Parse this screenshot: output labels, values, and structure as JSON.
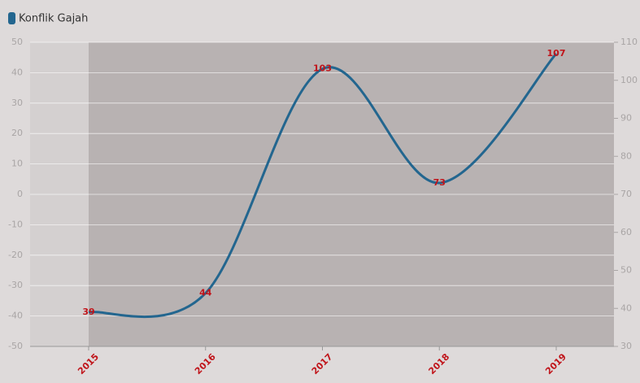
{
  "chart_data": {
    "type": "line",
    "categories": [
      "2015",
      "2016",
      "2017",
      "2018",
      "2019"
    ],
    "series": [
      {
        "name": "Konflik Gajah",
        "color": "#23668f",
        "values": [
          39,
          44,
          103,
          73,
          107
        ],
        "axis": "y2"
      }
    ],
    "ylim": [
      -50,
      50
    ],
    "yticks": [
      -50,
      -40,
      -30,
      -20,
      -10,
      0,
      10,
      20,
      30,
      40,
      50
    ],
    "y2lim": [
      30,
      110
    ],
    "y2ticks": [
      30,
      40,
      50,
      60,
      70,
      80,
      90,
      100,
      110
    ],
    "grid": true,
    "legend": "top-left"
  }
}
